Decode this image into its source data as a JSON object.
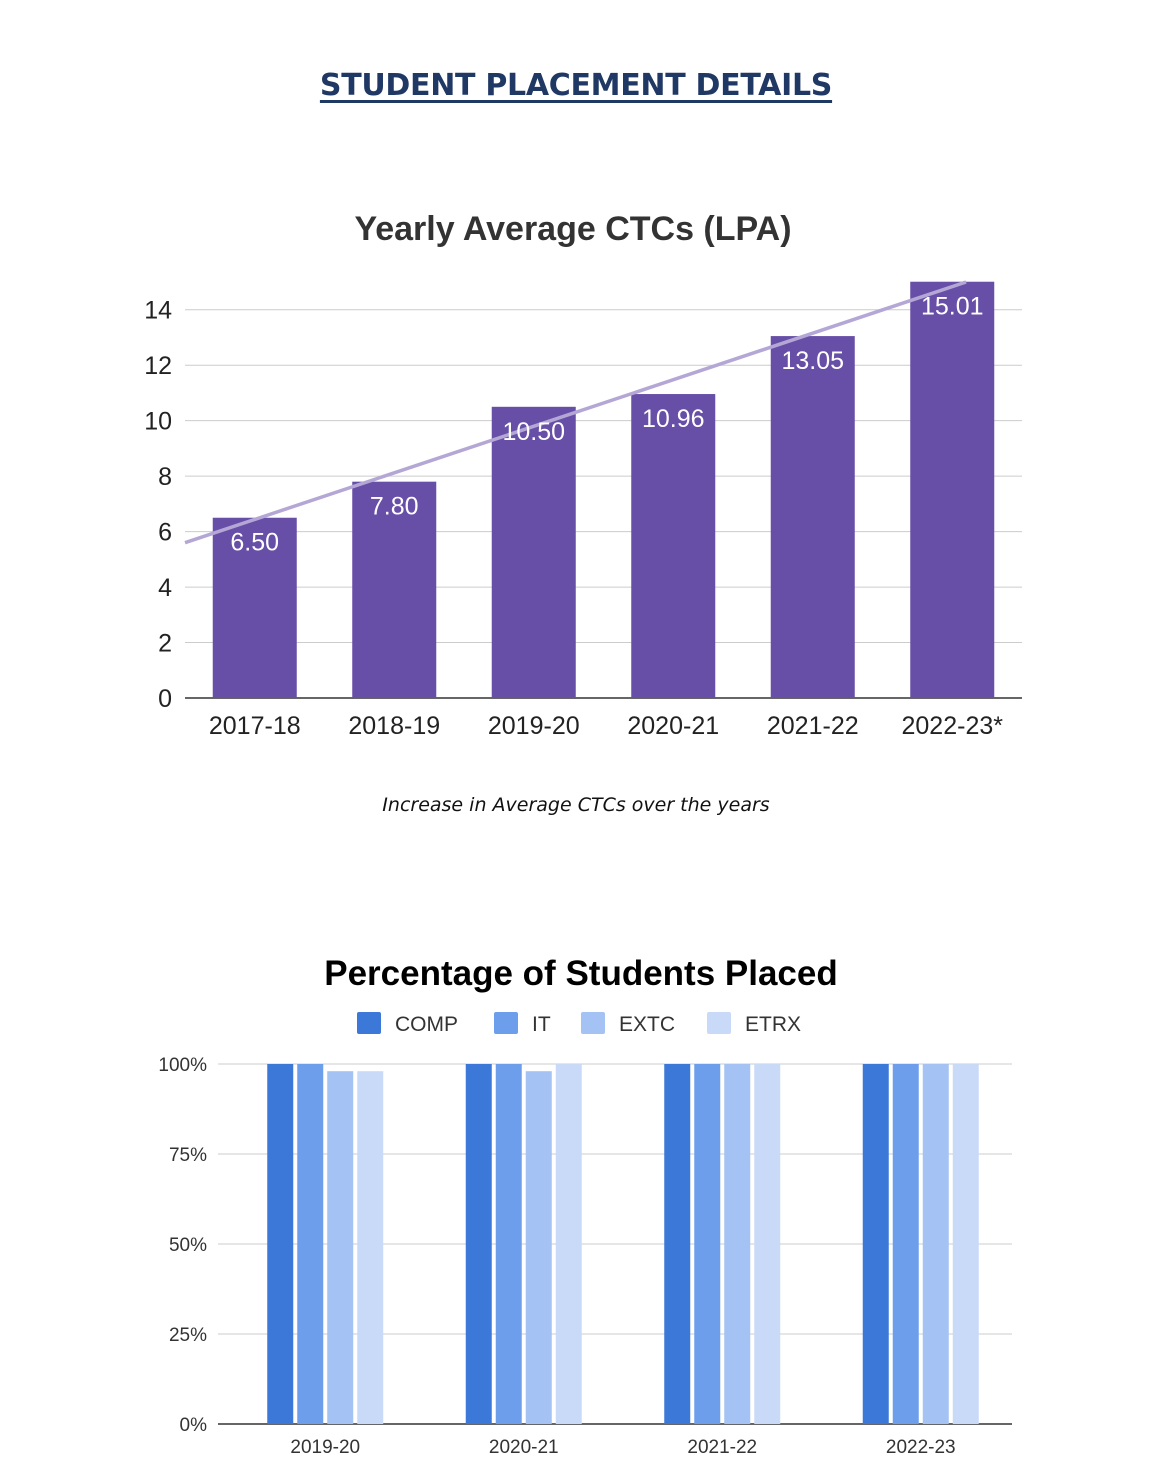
{
  "page": {
    "heading": "STUDENT PLACEMENT DETAILS",
    "caption": "Increase in Average CTCs over the years"
  },
  "chart_data": [
    {
      "type": "bar",
      "title": "Yearly Average CTCs (LPA)",
      "categories": [
        "2017-18",
        "2018-19",
        "2019-20",
        "2020-21",
        "2021-22",
        "2022-23*"
      ],
      "values": [
        6.5,
        7.8,
        10.5,
        10.96,
        13.05,
        15.01
      ],
      "value_labels": [
        "6.50",
        "7.80",
        "10.50",
        "10.96",
        "13.05",
        "15.01"
      ],
      "ylim": [
        0,
        15
      ],
      "yticks": [
        0,
        2,
        4,
        6,
        8,
        10,
        12,
        14
      ],
      "trendline": true,
      "grid": true,
      "colors": {
        "bar": "#674ea7",
        "trend": "#b4a7d6",
        "label": "#ffffff"
      }
    },
    {
      "type": "bar",
      "title": "Percentage of Students Placed",
      "categories": [
        "2019-20",
        "2020-21",
        "2021-22",
        "2022-23"
      ],
      "series": [
        {
          "name": "COMP",
          "values": [
            100,
            100,
            100,
            100
          ],
          "color": "#3c78d8"
        },
        {
          "name": "IT",
          "values": [
            100,
            100,
            100,
            100
          ],
          "color": "#6d9eeb"
        },
        {
          "name": "EXTC",
          "values": [
            98,
            98,
            100,
            100
          ],
          "color": "#a4c2f4"
        },
        {
          "name": "ETRX",
          "values": [
            98,
            100,
            100,
            100
          ],
          "color": "#c9daf8"
        }
      ],
      "ylim": [
        0,
        100
      ],
      "yticks": [
        0,
        25,
        50,
        75,
        100
      ],
      "ytick_labels": [
        "0%",
        "25%",
        "50%",
        "75%",
        "100%"
      ],
      "legend": "top",
      "grid": true
    }
  ]
}
